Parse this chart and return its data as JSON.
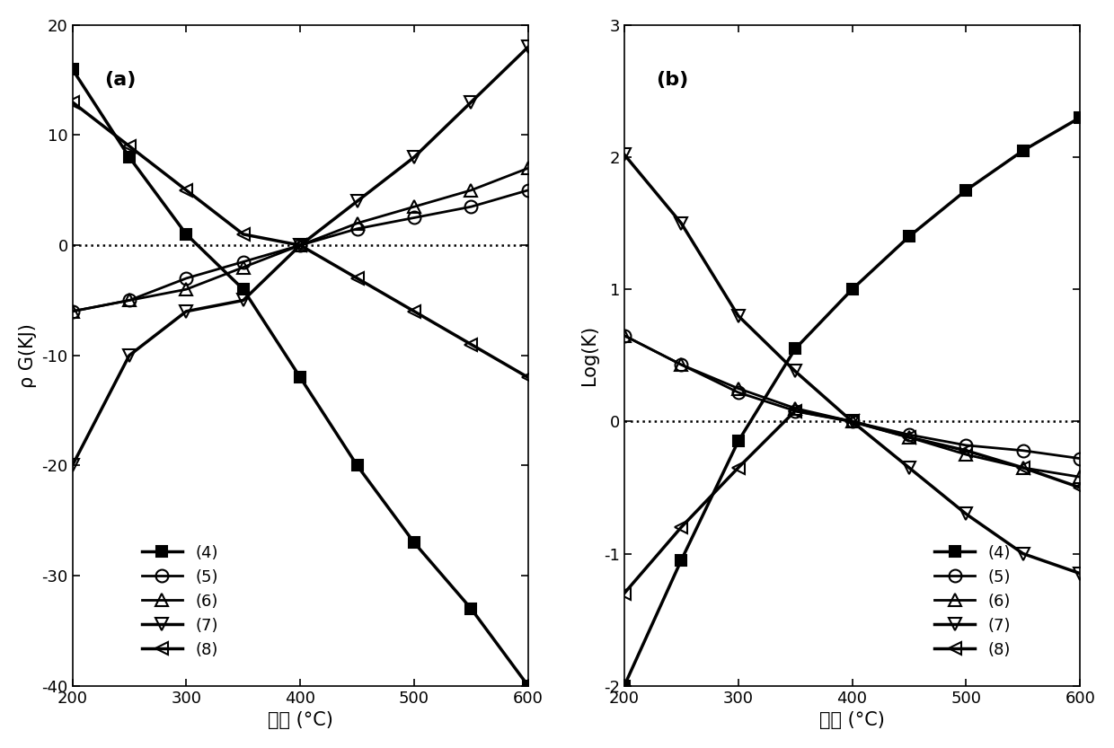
{
  "temps": [
    200,
    250,
    300,
    350,
    400,
    450,
    500,
    550,
    600
  ],
  "panel_a": {
    "series4_G": [
      16,
      8,
      1,
      -4,
      -12,
      -20,
      -27,
      -33,
      -40
    ],
    "series5_G": [
      -6,
      -5,
      -3,
      -1.5,
      0,
      1.5,
      2.5,
      3.5,
      5
    ],
    "series6_G": [
      -6,
      -5,
      -4,
      -2,
      0,
      2,
      3.5,
      5,
      7
    ],
    "series7_G": [
      -20,
      -10,
      -6,
      -5,
      0,
      4,
      8,
      13,
      18
    ],
    "series8_G": [
      13,
      9,
      5,
      1,
      0,
      -3,
      -6,
      -9,
      -12
    ]
  },
  "panel_b": {
    "series4_K": [
      -2.0,
      -1.05,
      -0.15,
      0.55,
      1.0,
      1.4,
      1.75,
      2.05,
      2.3
    ],
    "series5_K": [
      0.65,
      0.43,
      0.22,
      0.08,
      0.0,
      -0.1,
      -0.18,
      -0.22,
      -0.28
    ],
    "series6_K": [
      0.65,
      0.43,
      0.25,
      0.1,
      0.0,
      -0.12,
      -0.25,
      -0.35,
      -0.42
    ],
    "series7_K": [
      2.02,
      1.5,
      0.8,
      0.38,
      0.0,
      -0.35,
      -0.7,
      -1.0,
      -1.15
    ],
    "series8_K": [
      -1.3,
      -0.8,
      -0.35,
      0.08,
      0.0,
      -0.12,
      -0.22,
      -0.35,
      -0.5
    ]
  },
  "xlabel": "温度 (°C)",
  "ylabel_a": "ρ G(KJ)",
  "ylabel_b": "Log(K)",
  "label_a": "(a)",
  "label_b": "(b)",
  "legend_labels": [
    "(4)",
    "(5)",
    "(6)",
    "(7)",
    "(8)"
  ],
  "xlim": [
    200,
    600
  ],
  "ylim_a": [
    -40,
    20
  ],
  "ylim_b": [
    -2,
    3
  ],
  "yticks_a": [
    -40,
    -30,
    -20,
    -10,
    0,
    10,
    20
  ],
  "yticks_b": [
    -2,
    -1,
    0,
    1,
    2,
    3
  ],
  "xticks": [
    200,
    300,
    400,
    500,
    600
  ],
  "marker_styles": [
    "s",
    "o",
    "^",
    "v",
    "<"
  ],
  "line_widths": [
    2.5,
    2.0,
    2.0,
    2.5,
    2.5
  ],
  "marker_sizes": [
    9,
    10,
    10,
    10,
    10
  ],
  "marker_fills": [
    "black",
    "none",
    "none",
    "none",
    "none"
  ]
}
